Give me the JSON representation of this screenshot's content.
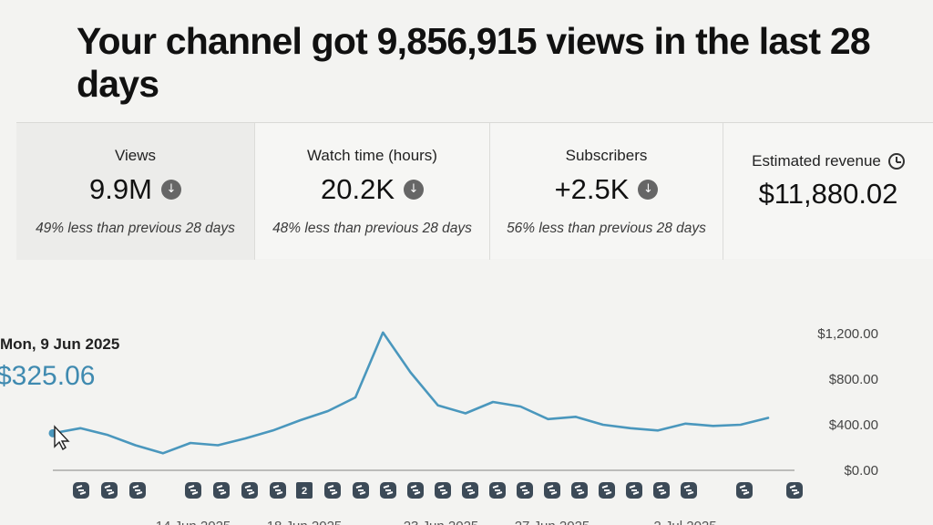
{
  "headline": "Your channel got 9,856,915 views in the last 28 days",
  "metrics": [
    {
      "label": "Views",
      "value": "9.9M",
      "compare": "49% less than previous 28 days",
      "trend_icon": "arrow-down-circle-icon"
    },
    {
      "label": "Watch time (hours)",
      "value": "20.2K",
      "compare": "48% less than previous 28 days",
      "trend_icon": "arrow-down-circle-icon"
    },
    {
      "label": "Subscribers",
      "value": "+2.5K",
      "compare": "56% less than previous 28 days",
      "trend_icon": "arrow-down-circle-icon"
    },
    {
      "label": "Estimated revenue",
      "value": "$11,880.02",
      "info_icon": "clock-icon"
    }
  ],
  "tooltip": {
    "date": "Mon, 9 Jun 2025",
    "value": "$325.06"
  },
  "chart_data": {
    "type": "line",
    "title": "",
    "y_ticks": [
      "$0.00",
      "$400.00",
      "$800.00",
      "$1,200.00"
    ],
    "ylim": [
      0,
      1200
    ],
    "grid": false,
    "x_tick_labels": [
      "14 Jun 2025",
      "18 Jun 2025",
      "23 Jun 2025",
      "27 Jun 2025",
      "2 Jul 2025"
    ],
    "series": [
      {
        "color": "#4a97bd",
        "values": [
          325.06,
          370,
          310,
          220,
          150,
          240,
          220,
          280,
          350,
          440,
          520,
          640,
          1210,
          860,
          570,
          500,
          600,
          560,
          450,
          470,
          400,
          370,
          350,
          410,
          390,
          400,
          460
        ]
      }
    ],
    "markers": {
      "icon": "video-upload-marker-icon",
      "active_label": "2"
    }
  },
  "colors": {
    "line": "#4a97bd",
    "value_accent": "#3f8ab0",
    "marker": "#3c4a57"
  }
}
